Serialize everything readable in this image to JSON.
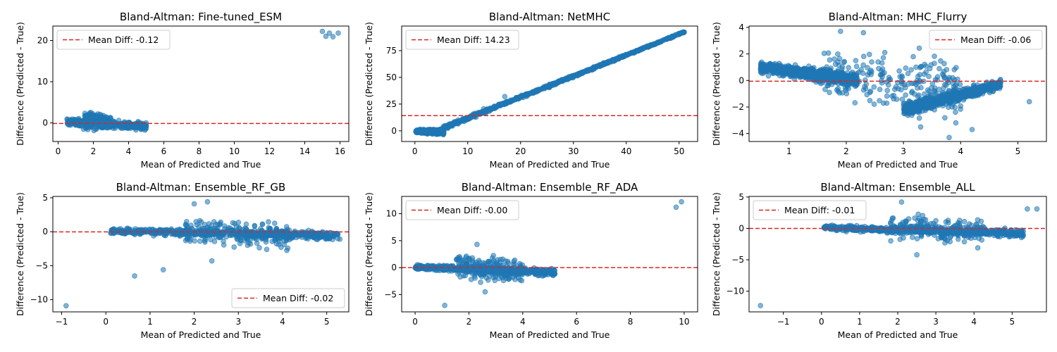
{
  "figure": {
    "background": "#ffffff",
    "point_color": "#1f77b4",
    "mean_line_color": "#d62728"
  },
  "chart_data": [
    {
      "type": "scatter",
      "title": "Bland-Altman: Fine-tuned_ESM",
      "xlabel": "Mean of Predicted and True",
      "ylabel": "Difference (Predicted - True)",
      "xlim": [
        -0.3,
        16.5
      ],
      "ylim": [
        -4.5,
        23.5
      ],
      "xticks": [
        0,
        2,
        4,
        6,
        8,
        10,
        12,
        14,
        16
      ],
      "yticks": [
        0,
        10,
        20
      ],
      "mean_diff": -0.12,
      "legend_label": "Mean Diff: -0.12",
      "legend_loc": "upper left",
      "clusters": [
        {
          "x": [
            0.5,
            5.0
          ],
          "y_center": [
            0.3,
            -0.8
          ],
          "y_half_width": [
            1.1,
            1.4
          ],
          "peak": [
            1.9,
            3.2
          ],
          "count": 420
        },
        {
          "x": [
            1.5,
            3.0
          ],
          "y_center": [
            1.8,
            0.5
          ],
          "y_half_width": [
            1.8,
            1.4
          ],
          "count": 120
        }
      ],
      "points": [
        [
          15.0,
          22.2
        ],
        [
          15.2,
          21.0
        ],
        [
          15.4,
          21.8
        ],
        [
          15.6,
          20.9
        ],
        [
          15.9,
          21.8
        ]
      ]
    },
    {
      "type": "scatter",
      "title": "Bland-Altman: NetMHC",
      "xlabel": "Mean of Predicted and True",
      "ylabel": "Difference (Predicted - True)",
      "xlim": [
        -2.5,
        53.5
      ],
      "ylim": [
        -10,
        98
      ],
      "xticks": [
        0,
        10,
        20,
        30,
        40,
        50
      ],
      "yticks": [
        0,
        25,
        50,
        75
      ],
      "mean_diff": 14.23,
      "legend_label": "Mean Diff: 14.23",
      "legend_loc": "upper left",
      "clusters": [
        {
          "x": [
            0.2,
            5.5
          ],
          "y_center": [
            -0.5,
            -1.0
          ],
          "y_half_width": [
            2.0,
            3.0
          ],
          "count": 500
        },
        {
          "x": [
            5.0,
            51.0
          ],
          "y_center": [
            2.0,
            92.5
          ],
          "y_half_width": [
            2.5,
            0.8
          ],
          "count": 700
        }
      ],
      "points": [
        [
          17.0,
          32.0
        ],
        [
          13.0,
          20.5
        ],
        [
          12.0,
          17.0
        ]
      ]
    },
    {
      "type": "scatter",
      "title": "Bland-Altman: MHC_Flurry",
      "xlabel": "Mean of Predicted and True",
      "ylabel": "Difference (Predicted - True)",
      "xlim": [
        0.3,
        5.5
      ],
      "ylim": [
        -4.6,
        4.1
      ],
      "xticks": [
        1,
        2,
        3,
        4,
        5
      ],
      "yticks": [
        -4,
        -2,
        0,
        2,
        4
      ],
      "mean_diff": -0.06,
      "legend_label": "Mean Diff: -0.06",
      "legend_loc": "upper right",
      "clusters": [
        {
          "x": [
            0.5,
            2.2
          ],
          "y_center": [
            1.0,
            0.0
          ],
          "y_half_width": [
            0.6,
            0.7
          ],
          "count": 700
        },
        {
          "x": [
            3.0,
            4.7
          ],
          "y_center": [
            -2.2,
            -0.3
          ],
          "y_half_width": [
            0.7,
            0.5
          ],
          "count": 700
        },
        {
          "x": [
            1.5,
            4.0
          ],
          "y_center": [
            0.5,
            -0.8
          ],
          "y_half_width": [
            3.0,
            3.0
          ],
          "count": 230
        }
      ],
      "points": [
        [
          3.8,
          -4.3
        ],
        [
          4.2,
          -3.7
        ],
        [
          3.3,
          -3.5
        ],
        [
          5.2,
          -1.6
        ],
        [
          2.3,
          3.6
        ],
        [
          1.9,
          3.7
        ]
      ]
    },
    {
      "type": "scatter",
      "title": "Bland-Altman: Ensemble_RF_GB",
      "xlabel": "Mean of Predicted and True",
      "ylabel": "Difference (Predicted - True)",
      "xlim": [
        -1.2,
        5.5
      ],
      "ylim": [
        -11.8,
        5.2
      ],
      "xticks": [
        -1,
        0,
        1,
        2,
        3,
        4,
        5
      ],
      "yticks": [
        -10,
        -5,
        0,
        5
      ],
      "mean_diff": -0.02,
      "legend_label": "Mean Diff: -0.02",
      "legend_loc": "lower right",
      "clusters": [
        {
          "x": [
            0.1,
            5.3
          ],
          "y_center": [
            0.1,
            -0.6
          ],
          "y_half_width": [
            0.6,
            0.8
          ],
          "count": 650
        },
        {
          "x": [
            1.8,
            4.2
          ],
          "y_center": [
            0.3,
            -0.8
          ],
          "y_half_width": [
            2.8,
            2.6
          ],
          "count": 200
        }
      ],
      "points": [
        [
          -0.9,
          -10.9
        ],
        [
          0.65,
          -6.5
        ],
        [
          1.3,
          -5.6
        ],
        [
          2.4,
          -4.3
        ],
        [
          2.3,
          4.4
        ],
        [
          2.0,
          4.1
        ]
      ]
    },
    {
      "type": "scatter",
      "title": "Bland-Altman: Ensemble_RF_ADA",
      "xlabel": "Mean of Predicted and True",
      "ylabel": "Difference (Predicted - True)",
      "xlim": [
        -0.5,
        10.5
      ],
      "ylim": [
        -8.2,
        13.2
      ],
      "xticks": [
        0,
        2,
        4,
        6,
        8,
        10
      ],
      "yticks": [
        -5,
        0,
        5,
        10
      ],
      "mean_diff": -0.0,
      "legend_label": "Mean Diff: -0.00",
      "legend_loc": "upper left",
      "clusters": [
        {
          "x": [
            0.0,
            5.2
          ],
          "y_center": [
            0.1,
            -0.9
          ],
          "y_half_width": [
            0.6,
            0.9
          ],
          "count": 650
        },
        {
          "x": [
            1.5,
            4.0
          ],
          "y_center": [
            0.3,
            -0.8
          ],
          "y_half_width": [
            3.0,
            2.8
          ],
          "count": 200
        }
      ],
      "points": [
        [
          1.1,
          -7.0
        ],
        [
          9.7,
          11.2
        ],
        [
          9.9,
          12.2
        ],
        [
          2.3,
          4.3
        ],
        [
          2.6,
          -4.5
        ]
      ]
    },
    {
      "type": "scatter",
      "title": "Bland-Altman: Ensemble_ALL",
      "xlabel": "Mean of Predicted and True",
      "ylabel": "Difference (Predicted - True)",
      "xlim": [
        -1.9,
        5.9
      ],
      "ylim": [
        -13.3,
        5.1
      ],
      "xticks": [
        -1,
        0,
        1,
        2,
        3,
        4,
        5
      ],
      "yticks": [
        -10,
        -5,
        0,
        5
      ],
      "mean_diff": -0.01,
      "legend_label": "Mean Diff: -0.01",
      "legend_loc": "upper left",
      "clusters": [
        {
          "x": [
            0.05,
            5.3
          ],
          "y_center": [
            0.1,
            -0.8
          ],
          "y_half_width": [
            0.6,
            0.9
          ],
          "count": 650
        },
        {
          "x": [
            1.8,
            4.3
          ],
          "y_center": [
            0.3,
            -0.8
          ],
          "y_half_width": [
            2.8,
            2.6
          ],
          "count": 200
        }
      ],
      "points": [
        [
          -1.6,
          -12.3
        ],
        [
          5.4,
          3.1
        ],
        [
          5.65,
          3.1
        ],
        [
          2.1,
          4.2
        ],
        [
          2.5,
          -4.2
        ],
        [
          4.1,
          -3.1
        ]
      ]
    }
  ]
}
